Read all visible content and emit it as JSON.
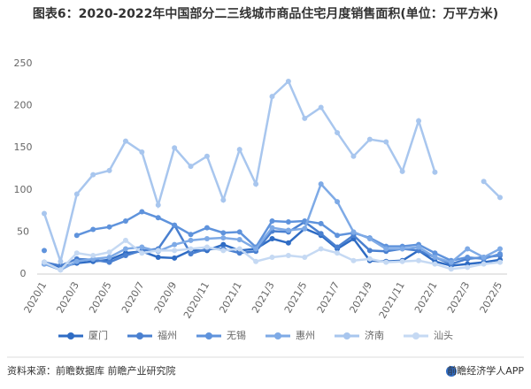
{
  "chart_data": {
    "type": "line",
    "title": "图表6：2020-2022年中国部分二三线城市商品住宅月度销售面积(单位：万平方米)",
    "categories": [
      "2020/1",
      null,
      "2020/3",
      null,
      "2020/5",
      null,
      "2020/7",
      null,
      "2020/9",
      null,
      "2020/11",
      null,
      "2021/1",
      null,
      "2021/3",
      null,
      "2021/5",
      null,
      "2021/7",
      null,
      "2021/9",
      null,
      "2021/11",
      null,
      "2022/1",
      null,
      "2022/3",
      null,
      "2022/5"
    ],
    "ylim": [
      0,
      250
    ],
    "yticks": [
      0,
      50,
      100,
      150,
      200,
      250
    ],
    "grid": false,
    "legend": "bottom",
    "series": [
      {
        "name": "厦门",
        "color": "#2f6cc4",
        "values": [
          12,
          8,
          13,
          15,
          17,
          25,
          27,
          20,
          19,
          28,
          28,
          35,
          28,
          30,
          42,
          37,
          54,
          46,
          30,
          42,
          16,
          15,
          16,
          28,
          15,
          10,
          12,
          14,
          17
        ]
      },
      {
        "name": "福州",
        "color": "#4a80d0",
        "values": [
          14,
          10,
          18,
          17,
          14,
          22,
          28,
          30,
          58,
          24,
          30,
          30,
          25,
          27,
          51,
          50,
          62,
          48,
          32,
          46,
          28,
          27,
          30,
          28,
          20,
          12,
          18,
          20,
          22
        ]
      },
      {
        "name": "无锡",
        "color": "#5f93dc",
        "values": [
          28,
          null,
          46,
          53,
          56,
          63,
          74,
          67,
          58,
          47,
          55,
          49,
          50,
          32,
          63,
          62,
          63,
          60,
          46,
          49,
          43,
          33,
          33,
          35,
          25,
          16,
          20,
          18,
          24
        ]
      },
      {
        "name": "惠州",
        "color": "#7eaae6",
        "values": [
          12,
          5,
          15,
          18,
          20,
          30,
          32,
          27,
          35,
          40,
          42,
          43,
          41,
          30,
          55,
          52,
          54,
          107,
          86,
          50,
          42,
          30,
          30,
          32,
          20,
          14,
          30,
          20,
          30
        ]
      },
      {
        "name": "济南",
        "color": "#a8c6ee",
        "values": [
          72,
          15,
          95,
          118,
          123,
          158,
          145,
          82,
          150,
          128,
          140,
          88,
          148,
          107,
          211,
          229,
          185,
          198,
          168,
          140,
          160,
          157,
          122,
          182,
          121,
          null,
          null,
          110,
          91
        ]
      },
      {
        "name": "汕头",
        "color": "#c5d9f3",
        "values": [
          14,
          5,
          25,
          22,
          26,
          40,
          25,
          28,
          28,
          30,
          32,
          28,
          30,
          15,
          20,
          22,
          20,
          30,
          25,
          16,
          18,
          14,
          15,
          16,
          12,
          6,
          8,
          12,
          14
        ]
      }
    ],
    "source": "资料来源：前瞻数据库 前瞻产业研究院",
    "brand": "前瞻经济学人APP"
  }
}
